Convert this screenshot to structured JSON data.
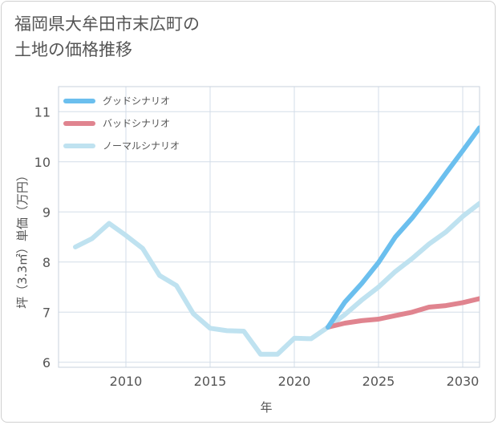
{
  "title_line1": "福岡県大牟田市末広町の",
  "title_line2": "土地の価格推移",
  "chart_data": {
    "type": "line",
    "title": "福岡県大牟田市末広町の土地の価格推移",
    "xlabel": "年",
    "ylabel": "坪（3.3㎡）単価（万円）",
    "xlim": [
      2006,
      2031
    ],
    "ylim": [
      5.9,
      11.5
    ],
    "xticks": [
      2010,
      2015,
      2020,
      2025,
      2030
    ],
    "yticks": [
      6,
      7,
      8,
      9,
      10,
      11
    ],
    "xtick_labels": [
      "2010",
      "2015",
      "2020",
      "2025",
      "2030"
    ],
    "ytick_labels": [
      "6",
      "7",
      "8",
      "9",
      "10",
      "11"
    ],
    "legend_position": "top-left",
    "series": [
      {
        "name": "グッドシナリオ",
        "color": "#6bbfee",
        "x": [
          2022,
          2023,
          2024,
          2025,
          2026,
          2027,
          2028,
          2029,
          2030,
          2031
        ],
        "y": [
          6.7,
          7.2,
          7.57,
          7.99,
          8.5,
          8.88,
          9.31,
          9.77,
          10.22,
          10.68
        ]
      },
      {
        "name": "バッドシナリオ",
        "color": "#e0848f",
        "x": [
          2022,
          2023,
          2024,
          2025,
          2026,
          2027,
          2028,
          2029,
          2030,
          2031
        ],
        "y": [
          6.7,
          6.78,
          6.83,
          6.86,
          6.93,
          7.0,
          7.1,
          7.13,
          7.19,
          7.27
        ]
      },
      {
        "name": "ノーマルシナリオ",
        "color": "#bfe2f0",
        "x": [
          2007,
          2008,
          2009,
          2010,
          2011,
          2012,
          2013,
          2014,
          2015,
          2016,
          2017,
          2018,
          2019,
          2020,
          2021,
          2022,
          2023,
          2024,
          2025,
          2026,
          2027,
          2028,
          2029,
          2030,
          2031
        ],
        "y": [
          8.3,
          8.47,
          8.77,
          8.53,
          8.27,
          7.73,
          7.53,
          6.97,
          6.68,
          6.63,
          6.62,
          6.16,
          6.16,
          6.48,
          6.47,
          6.7,
          6.95,
          7.24,
          7.5,
          7.81,
          8.07,
          8.36,
          8.6,
          8.91,
          9.17
        ]
      }
    ]
  }
}
